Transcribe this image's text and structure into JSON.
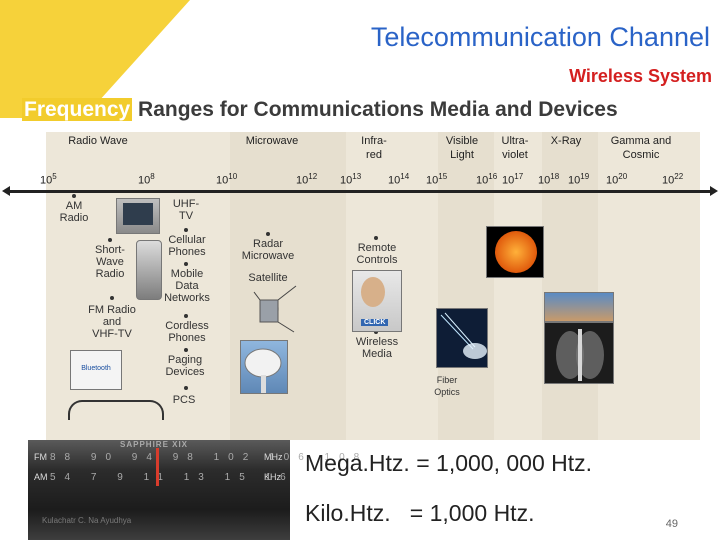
{
  "header": {
    "title": "Telecommunication Channel",
    "subtitle": "Wireless System",
    "heading_highlight": "Frequency",
    "heading_rest": " Ranges for Communications Media and Devices"
  },
  "spectrum": {
    "categories": [
      {
        "label": "Radio Wave"
      },
      {
        "label": "Microwave"
      },
      {
        "label": "Infra-\nred"
      },
      {
        "label": "Visible\nLight"
      },
      {
        "label": "Ultra-\nviolet"
      },
      {
        "label": "X-Ray"
      },
      {
        "label": "Gamma and\nCosmic"
      }
    ],
    "ticks": [
      {
        "base": "10",
        "exp": "5"
      },
      {
        "base": "10",
        "exp": "8"
      },
      {
        "base": "10",
        "exp": "10"
      },
      {
        "base": "10",
        "exp": "12"
      },
      {
        "base": "10",
        "exp": "13"
      },
      {
        "base": "10",
        "exp": "14"
      },
      {
        "base": "10",
        "exp": "15"
      },
      {
        "base": "10",
        "exp": "16"
      },
      {
        "base": "10",
        "exp": "17"
      },
      {
        "base": "10",
        "exp": "18"
      },
      {
        "base": "10",
        "exp": "19"
      },
      {
        "base": "10",
        "exp": "20"
      },
      {
        "base": "10",
        "exp": "22"
      }
    ],
    "devices": {
      "am_radio": "AM\nRadio",
      "shortwave": "Short-\nWave\nRadio",
      "fm_radio": "FM Radio\nand\nVHF-TV",
      "uhf_tv": "UHF-\nTV",
      "cellular": "Cellular\nPhones",
      "mobile_data": "Mobile\nData\nNetworks",
      "cordless": "Cordless\nPhones",
      "paging": "Paging\nDevices",
      "pcs": "PCS",
      "radar": "Radar\nMicrowave",
      "satellite": "Satellite",
      "remote": "Remote\nControls",
      "wireless_media": "Wireless\nMedia",
      "fiber": "Fiber\nOptics",
      "bluetooth": "Bluetooth",
      "click": "CLICK"
    }
  },
  "radio": {
    "brand": "SAPPHIRE XIX",
    "fm": "FM",
    "am": "AM",
    "mhz": "MHz",
    "khz": "KHz",
    "fm_scale": "88 90 94 98 102 106 108",
    "am_scale": "54 7 9 11 13 15 16",
    "author": "Kulachatr C. Na Ayudhya"
  },
  "notes": {
    "mega": "Mega.Htz. = 1,000, 000 Htz.",
    "kilo": "Kilo.Htz.   = 1,000 Htz."
  },
  "page_number": "49"
}
